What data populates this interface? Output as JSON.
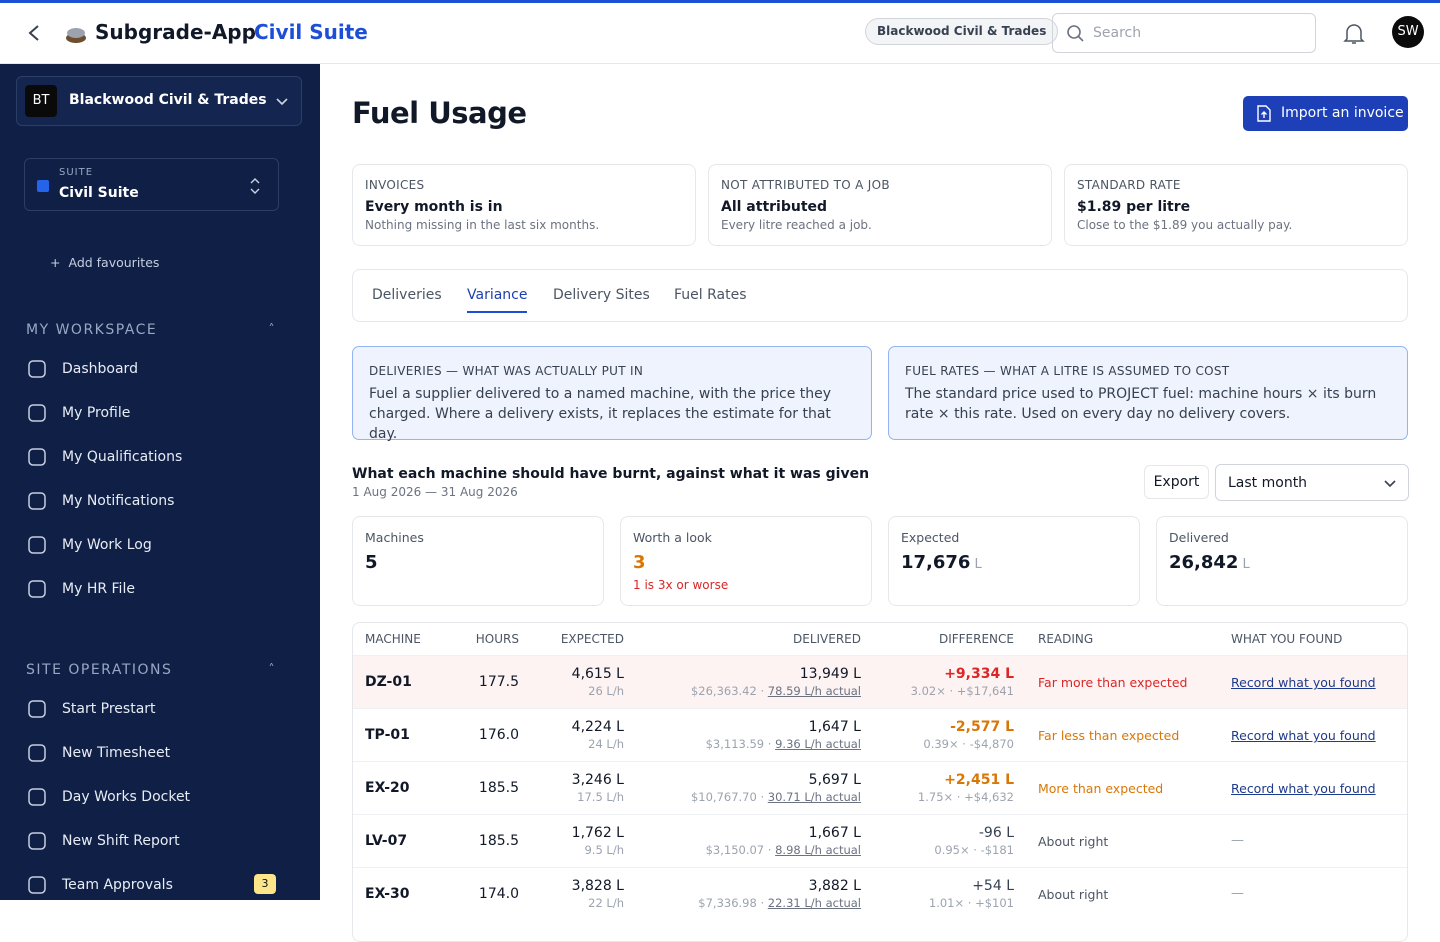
{
  "topbar": {
    "app_name": "Subgrade-App",
    "suite": "Civil Suite",
    "org": "Blackwood Civil & Trades",
    "search_placeholder": "Search",
    "avatar": "SW"
  },
  "sidebar": {
    "org_initials": "BT",
    "org_name": "Blackwood Civil & Trades",
    "suite_label": "SUITE",
    "suite_name": "Civil Suite",
    "add_favourites": "Add favourites",
    "sections": [
      {
        "title": "MY WORKSPACE",
        "items": [
          {
            "label": "Dashboard"
          },
          {
            "label": "My Profile"
          },
          {
            "label": "My Qualifications"
          },
          {
            "label": "My Notifications"
          },
          {
            "label": "My Work Log"
          },
          {
            "label": "My HR File"
          }
        ]
      },
      {
        "title": "SITE OPERATIONS",
        "items": [
          {
            "label": "Start Prestart"
          },
          {
            "label": "New Timesheet"
          },
          {
            "label": "Day Works Docket"
          },
          {
            "label": "New Shift Report"
          },
          {
            "label": "Team Approvals",
            "badge": "3"
          }
        ]
      }
    ]
  },
  "page": {
    "title": "Fuel Usage",
    "import_button": "Import an invoice",
    "summary_cards": [
      {
        "label": "INVOICES",
        "value": "Every month is in",
        "note": "Nothing missing in the last six months."
      },
      {
        "label": "NOT ATTRIBUTED TO A JOB",
        "value": "All attributed",
        "note": "Every litre reached a job."
      },
      {
        "label": "STANDARD RATE",
        "value": "$1.89 per litre",
        "note": "Close to the $1.89 you actually pay."
      }
    ],
    "tabs": [
      {
        "label": "Deliveries",
        "active": false
      },
      {
        "label": "Variance",
        "active": true
      },
      {
        "label": "Delivery Sites",
        "active": false
      },
      {
        "label": "Fuel Rates",
        "active": false
      }
    ],
    "info_boxes": [
      {
        "title": "DELIVERIES — WHAT WAS ACTUALLY PUT IN",
        "text": "Fuel a supplier delivered to a named machine, with the price they charged. Where a delivery exists, it replaces the estimate for that day."
      },
      {
        "title": "FUEL RATES — WHAT A LITRE IS ASSUMED TO COST",
        "text": "The standard price used to PROJECT fuel: machine hours × its burn rate × this rate. Used on every day no delivery covers."
      }
    ],
    "variance": {
      "heading": "What each machine should have burnt, against what it was given",
      "date_range": "1 Aug 2026 — 31 Aug 2026",
      "export_button": "Export",
      "period": "Last month",
      "stats": [
        {
          "label": "Machines",
          "value": "5"
        },
        {
          "label": "Worth a look",
          "value": "3",
          "note": "1 is 3x or worse",
          "tone": "warn"
        },
        {
          "label": "Expected",
          "value": "17,676",
          "unit": "L"
        },
        {
          "label": "Delivered",
          "value": "26,842",
          "unit": "L"
        }
      ],
      "table": {
        "columns": [
          "MACHINE",
          "HOURS",
          "EXPECTED",
          "DELIVERED",
          "DIFFERENCE",
          "READING",
          "WHAT YOU FOUND"
        ],
        "rows": [
          {
            "machine": "DZ-01",
            "hours": "177.5",
            "expected": "4,615 L",
            "expected_rate": "26 L/h",
            "delivered": "13,949 L",
            "delivered_cost": "$26,363.42 · ",
            "delivered_rate": "78.59 L/h actual",
            "difference": "+9,334 L",
            "difference_detail": "3.02× · +$17,641",
            "reading": "Far more than expected",
            "action": "Record what you found",
            "tone": "bad",
            "highlight": true
          },
          {
            "machine": "TP-01",
            "hours": "176.0",
            "expected": "4,224 L",
            "expected_rate": "24 L/h",
            "delivered": "1,647 L",
            "delivered_cost": "$3,113.59 · ",
            "delivered_rate": "9.36 L/h actual",
            "difference": "-2,577 L",
            "difference_detail": "0.39× · -$4,870",
            "reading": "Far less than expected",
            "action": "Record what you found",
            "tone": "warn"
          },
          {
            "machine": "EX-20",
            "hours": "185.5",
            "expected": "3,246 L",
            "expected_rate": "17.5 L/h",
            "delivered": "5,697 L",
            "delivered_cost": "$10,767.70 · ",
            "delivered_rate": "30.71 L/h actual",
            "difference": "+2,451 L",
            "difference_detail": "1.75× · +$4,632",
            "reading": "More than expected",
            "action": "Record what you found",
            "tone": "warn"
          },
          {
            "machine": "LV-07",
            "hours": "185.5",
            "expected": "1,762 L",
            "expected_rate": "9.5 L/h",
            "delivered": "1,667 L",
            "delivered_cost": "$3,150.07 · ",
            "delivered_rate": "8.98 L/h actual",
            "difference": "-96 L",
            "difference_detail": "0.95× · -$181",
            "reading": "About right",
            "action_none": "—",
            "tone": "ok"
          },
          {
            "machine": "EX-30",
            "hours": "174.0",
            "expected": "3,828 L",
            "expected_rate": "22 L/h",
            "delivered": "3,882 L",
            "delivered_cost": "$7,336.98 · ",
            "delivered_rate": "22.31 L/h actual",
            "difference": "+54 L",
            "difference_detail": "1.01× · +$101",
            "reading": "About right",
            "action_none": "—",
            "tone": "ok"
          }
        ]
      }
    }
  }
}
